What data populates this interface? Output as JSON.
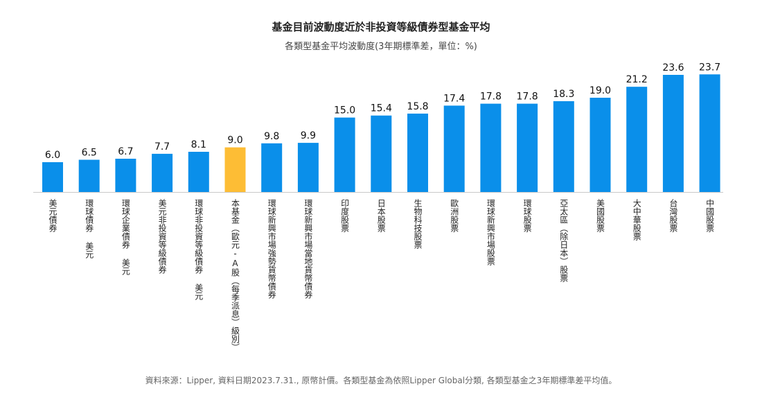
{
  "chart_data": {
    "type": "bar",
    "title": "基金目前波動度近於非投資等級債券型基金平均",
    "subtitle": "各類型基金平均波動度(3年期標準差，單位：%)",
    "xlabel": "",
    "ylabel": "",
    "ylim": [
      0,
      25
    ],
    "grid": false,
    "legend": "none",
    "categories": [
      "美元債券",
      "環球債券 美元",
      "環球企業債券 美元",
      "美元非投資等級債券",
      "環球非投資等級債券 美元",
      "本基金（歐元‑A股（每季派息）級別）",
      "環球新興市場強勢貨幣債券",
      "環球新興市場當地貨幣債券",
      "印度股票",
      "日本股票",
      "生物科技股票",
      "歐洲股票",
      "環球新興市場股票",
      "環球股票",
      "亞太區（除日本）股票",
      "美國股票",
      "大中華股票",
      "台灣股票",
      "中國股票"
    ],
    "values": [
      6.0,
      6.5,
      6.7,
      7.7,
      8.1,
      9.0,
      9.8,
      9.9,
      15.0,
      15.4,
      15.8,
      17.4,
      17.8,
      17.8,
      18.3,
      19.0,
      21.2,
      23.6,
      23.7
    ],
    "value_labels": [
      "6.0",
      "6.5",
      "6.7",
      "7.7",
      "8.1",
      "9.0",
      "9.8",
      "9.9",
      "15.0",
      "15.4",
      "15.8",
      "17.4",
      "17.8",
      "17.8",
      "18.3",
      "19.0",
      "21.2",
      "23.6",
      "23.7"
    ],
    "highlight_index": 5,
    "colors": {
      "bar": "#0a8fea",
      "highlight": "#fdbd35",
      "axis": "#c8c8c8"
    }
  },
  "source_note": "資料來源：Lipper, 資料日期2023.7.31., 原幣計價。各類型基金為依照Lipper Global分類, 各類型基金之3年期標準差平均值。"
}
